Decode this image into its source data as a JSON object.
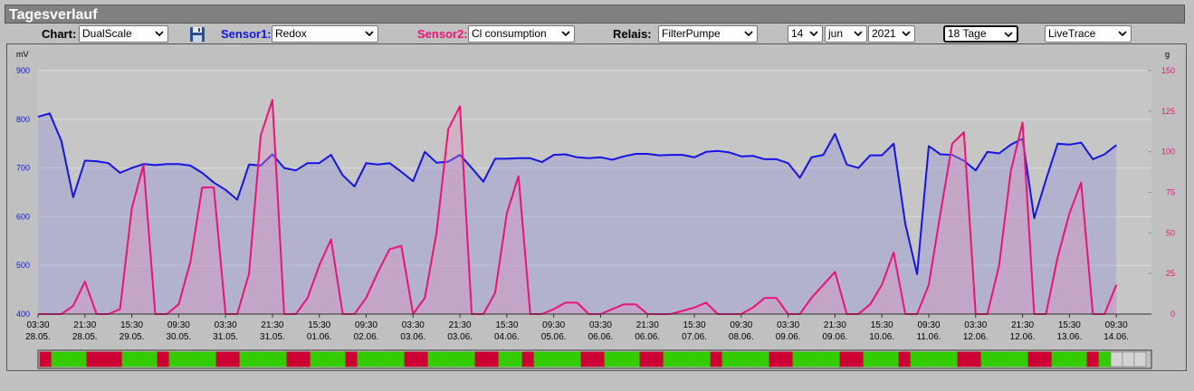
{
  "header": {
    "title": "Tagesverlauf"
  },
  "controls": {
    "chart_label": "Chart:",
    "chart_mode": "DualScale",
    "sensor1_label": "Sensor1:",
    "sensor1": "Redox",
    "sensor2_label": "Sensor2:",
    "sensor2": "Cl consumption",
    "relay_label": "Relais:",
    "relay": "FilterPumpe",
    "day": "14",
    "month": "jun",
    "year": "2021",
    "range": "18 Tage",
    "mode": "LiveTrace"
  },
  "chart_data": {
    "type": "line",
    "ylabel": "mV",
    "y2label": "g",
    "x": [
      0,
      4.5,
      9,
      13.5,
      18,
      22.5,
      27,
      31.5,
      36,
      40.5,
      45,
      49.5,
      54,
      58.5,
      63,
      67.5,
      72,
      76.5,
      81,
      85.5,
      90,
      94.5,
      99,
      103.5,
      108,
      112.5,
      117,
      121.5,
      126,
      130.5,
      135,
      139.5,
      144,
      148.5,
      153,
      157.5,
      162,
      166.5,
      171,
      175.5,
      180,
      184.5,
      189,
      193.5,
      198,
      202.5,
      207,
      211.5,
      216,
      220.5,
      225,
      229.5,
      234,
      238.5,
      243,
      247.5,
      252,
      256.5,
      261,
      265.5,
      270,
      274.5,
      279,
      283.5,
      288,
      292.5,
      297,
      301.5,
      306,
      310.5,
      315,
      319.5,
      324,
      328.5,
      333,
      337.5,
      342,
      346.5,
      351,
      355.5,
      360,
      364.5,
      369,
      373.5,
      378,
      382.5,
      387,
      391.5,
      396,
      400.5,
      405,
      409.5,
      414
    ],
    "xlim": [
      0,
      427.5
    ],
    "xticks": [
      {
        "value": 0,
        "label": "03:30",
        "date": "28.05."
      },
      {
        "value": 18,
        "label": "21:30",
        "date": "28.05."
      },
      {
        "value": 36,
        "label": "15:30",
        "date": "29.05."
      },
      {
        "value": 54,
        "label": "09:30",
        "date": "30.05."
      },
      {
        "value": 72,
        "label": "03:30",
        "date": "31.05."
      },
      {
        "value": 90,
        "label": "21:30",
        "date": "31.05."
      },
      {
        "value": 108,
        "label": "15:30",
        "date": "01.06."
      },
      {
        "value": 126,
        "label": "09:30",
        "date": "02.06."
      },
      {
        "value": 144,
        "label": "03:30",
        "date": "03.06."
      },
      {
        "value": 162,
        "label": "21:30",
        "date": "03.06."
      },
      {
        "value": 180,
        "label": "15:30",
        "date": "04.06."
      },
      {
        "value": 198,
        "label": "09:30",
        "date": "05.06."
      },
      {
        "value": 216,
        "label": "03:30",
        "date": "06.06."
      },
      {
        "value": 234,
        "label": "21:30",
        "date": "06.06."
      },
      {
        "value": 252,
        "label": "15:30",
        "date": "07.06."
      },
      {
        "value": 270,
        "label": "09:30",
        "date": "08.06."
      },
      {
        "value": 288,
        "label": "03:30",
        "date": "09.06."
      },
      {
        "value": 306,
        "label": "21:30",
        "date": "09.06."
      },
      {
        "value": 324,
        "label": "15:30",
        "date": "10.06."
      },
      {
        "value": 342,
        "label": "09:30",
        "date": "11.06."
      },
      {
        "value": 360,
        "label": "03:30",
        "date": "12.06."
      },
      {
        "value": 378,
        "label": "21:30",
        "date": "12.06."
      },
      {
        "value": 396,
        "label": "15:30",
        "date": "13.06."
      },
      {
        "value": 414,
        "label": "09:30",
        "date": "14.06."
      }
    ],
    "ylim": [
      400,
      900
    ],
    "yticks": [
      400,
      500,
      600,
      700,
      800,
      900
    ],
    "y2lim": [
      0,
      150
    ],
    "y2ticks": [
      0,
      25,
      50,
      75,
      100,
      125,
      150
    ],
    "grid": true,
    "series": [
      {
        "color": "#1414e6",
        "fill": "rgba(140,140,215,0.35)",
        "values": [
          805,
          812,
          755,
          640,
          715,
          714,
          710,
          690,
          700,
          708,
          706,
          708,
          708,
          705,
          690,
          670,
          655,
          635,
          707,
          705,
          728,
          700,
          695,
          710,
          710,
          727,
          685,
          662,
          710,
          707,
          710,
          692,
          673,
          733,
          711,
          713,
          727,
          700,
          672,
          719,
          719,
          720,
          720,
          712,
          727,
          728,
          722,
          720,
          722,
          717,
          724,
          729,
          729,
          726,
          727,
          727,
          722,
          733,
          735,
          732,
          724,
          725,
          718,
          718,
          710,
          680,
          722,
          727,
          770,
          707,
          700,
          726,
          726,
          750,
          585,
          482,
          745,
          728,
          727,
          715,
          695,
          733,
          730,
          748,
          760,
          597,
          676,
          750,
          748,
          752,
          718,
          728,
          747
        ]
      },
      {
        "color": "#e8147a",
        "fill": "rgba(225,140,190,0.35)",
        "axis": "y2",
        "values": [
          0,
          0,
          0,
          5,
          20,
          0,
          0,
          3,
          65,
          92,
          0,
          0,
          6,
          32,
          78,
          78,
          0,
          0,
          25,
          110,
          132,
          0,
          0,
          10,
          30,
          46,
          0,
          0,
          10,
          26,
          40,
          42,
          0,
          10,
          50,
          114,
          128,
          0,
          0,
          13,
          62,
          85,
          0,
          0,
          3,
          7,
          7,
          0,
          0,
          3,
          6,
          6,
          0,
          0,
          0,
          2,
          4,
          7,
          0,
          0,
          0,
          4,
          10,
          10,
          0,
          0,
          10,
          18,
          26,
          0,
          0,
          6,
          18,
          38,
          0,
          0,
          18,
          62,
          105,
          112,
          0,
          0,
          30,
          88,
          118,
          0,
          0,
          35,
          62,
          81,
          0,
          0,
          18
        ]
      }
    ],
    "relay": {
      "on_color": "#33cc00",
      "off_color": "#cc0033",
      "empty_color": "#d4d4d4",
      "values": [
        0,
        1,
        1,
        1,
        0,
        0,
        0,
        1,
        1,
        1,
        0,
        1,
        1,
        1,
        1,
        0,
        0,
        1,
        1,
        1,
        1,
        0,
        0,
        1,
        1,
        1,
        0,
        1,
        1,
        1,
        1,
        0,
        0,
        1,
        1,
        1,
        1,
        0,
        0,
        1,
        1,
        0,
        1,
        1,
        1,
        1,
        0,
        0,
        1,
        1,
        1,
        0,
        0,
        1,
        1,
        1,
        1,
        0,
        1,
        1,
        1,
        1,
        0,
        0,
        1,
        1,
        1,
        1,
        0,
        0,
        1,
        1,
        1,
        0,
        1,
        1,
        1,
        1,
        0,
        0,
        1,
        1,
        1,
        1,
        0,
        0,
        1,
        1,
        1,
        0,
        1,
        null,
        null,
        null
      ]
    }
  }
}
